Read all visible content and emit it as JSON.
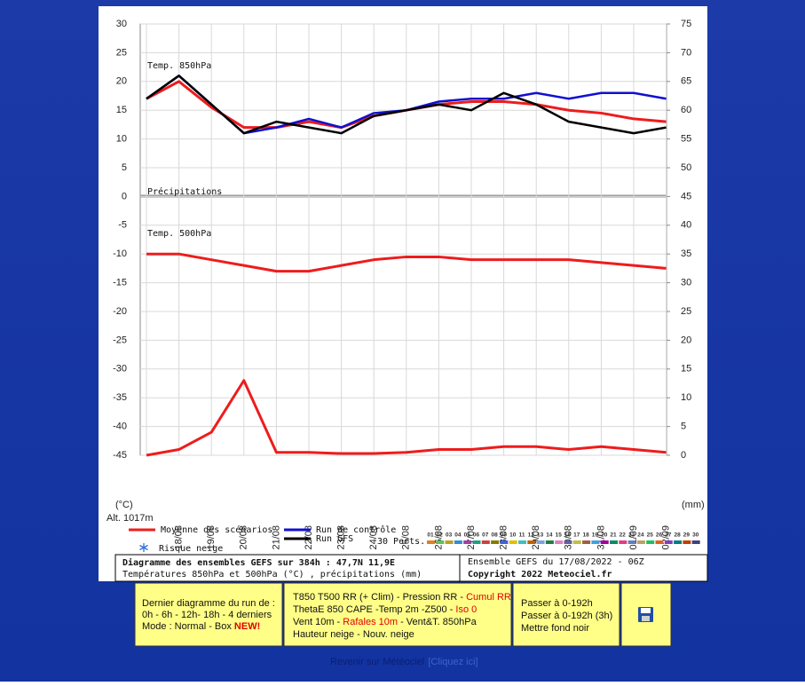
{
  "chart_data": {
    "type": "line",
    "panel_labels": [
      "Temp. 850hPa",
      "Précipitations",
      "Temp. 500hPa"
    ],
    "y_unit": "(°C)",
    "y2_unit": "(mm)",
    "altitude": "Alt. 1017m",
    "categories": [
      null,
      "18/08",
      "19/08",
      "20/08",
      "21/08",
      "22/08",
      "23/08",
      "24/08",
      "25/08",
      "26/08",
      "27/08",
      "28/08",
      "29/08",
      "30/08",
      "31/08",
      "01/09",
      "02/09"
    ],
    "ylim": [
      -45,
      30
    ],
    "yticks": [
      30,
      25,
      20,
      15,
      10,
      5,
      0,
      -5,
      -10,
      -15,
      -20,
      -25,
      -30,
      -35,
      -40,
      -45
    ],
    "y2lim": [
      0,
      75
    ],
    "y2ticks": [
      75,
      70,
      65,
      60,
      55,
      50,
      45,
      40,
      35,
      30,
      25,
      20,
      15,
      10,
      5,
      0
    ],
    "grid": true,
    "series": [
      {
        "name": "Moyenne des scénarios",
        "color": "#ee1c1c",
        "values": [
          17,
          20,
          15.5,
          12,
          12,
          13,
          12,
          14,
          15,
          16,
          16.5,
          16.5,
          16,
          15,
          14.5,
          13.5,
          13
        ]
      },
      {
        "color": "#ee1c1c",
        "values": [
          -10,
          -10,
          -11,
          -12,
          -13,
          -13,
          -12,
          -11,
          -10.5,
          -10.5,
          -11,
          -11,
          -11,
          -11,
          -11.5,
          -12,
          -12.5
        ]
      },
      {
        "color": "#ee1c1c",
        "axis": "y2",
        "values": [
          0,
          1,
          4,
          13,
          0.5,
          0.5,
          0.3,
          0.3,
          0.5,
          1,
          1,
          1.5,
          1.5,
          1,
          1.5,
          1,
          0.5
        ]
      },
      {
        "name": "Run de contrôle",
        "color": "#1010d0",
        "values": [
          17,
          21,
          16,
          11,
          12,
          13.5,
          12,
          14.5,
          15,
          16.5,
          17,
          17,
          18,
          17,
          18,
          18,
          17
        ]
      },
      {
        "name": "Run GFS",
        "color": "#000000",
        "values": [
          17,
          21,
          16,
          11,
          13,
          12,
          11,
          14,
          15,
          16,
          15,
          18,
          16,
          13,
          12,
          11,
          12
        ]
      }
    ],
    "snow_legend": "Risque neige",
    "perturbations": {
      "label": "30 Perts.",
      "ids": [
        "01",
        "02",
        "03",
        "04",
        "05",
        "06",
        "07",
        "08",
        "09",
        "10",
        "11",
        "12",
        "13",
        "14",
        "15",
        "16",
        "17",
        "18",
        "19",
        "20",
        "21",
        "22",
        "23",
        "24",
        "25",
        "26",
        "27",
        "28",
        "29",
        "30"
      ],
      "colors": [
        "#e08020",
        "#60c060",
        "#c0a020",
        "#3090d0",
        "#a040a0",
        "#20a080",
        "#d04040",
        "#808000",
        "#4060e0",
        "#e0c000",
        "#40c0c0",
        "#c06000",
        "#80a0e0",
        "#208040",
        "#e080c0",
        "#6060a0",
        "#c0c040",
        "#a06040",
        "#40a0e0",
        "#a000a0",
        "#009060",
        "#e04080",
        "#6080c0",
        "#c0a060",
        "#20c060",
        "#e06020",
        "#8040c0",
        "#008080",
        "#c04000",
        "#404080"
      ]
    },
    "info": {
      "title": "Diagramme des ensembles GEFS sur 384h : 47,7N 11,9E",
      "subtitle": "Températures 850hPa et 500hPa (°C) , précipitations (mm)",
      "run": "Ensemble GEFS du 17/08/2022 - 06Z",
      "copyright": "Copyright 2022 Meteociel.fr"
    }
  },
  "page": {
    "boxes": [
      [
        [
          {
            "text": "Dernier diagramme du run de :"
          }
        ],
        [
          {
            "text": "0h - 6h - 12h- 18h - 4 derniers"
          }
        ],
        [
          {
            "text": "Mode : Normal - Box "
          },
          {
            "text": "NEW!",
            "color": "#e00000"
          }
        ]
      ],
      [
        [
          {
            "text": "T850 T500 RR (+ Clim) - Pression RR - "
          },
          {
            "text": "Cumul RR",
            "color": "#e00000"
          }
        ],
        [
          {
            "text": "ThetaE 850 CAPE -Temp 2m -Z500 - "
          },
          {
            "text": "Iso 0",
            "color": "#e00000"
          }
        ],
        [
          {
            "text": "Vent 10m - "
          },
          {
            "text": "Rafales 10m",
            "color": "#e00000"
          },
          {
            "text": " - Vent&T. 850hPa"
          }
        ],
        [
          {
            "text": "Hauteur neige - Nouv. neige"
          }
        ]
      ],
      [
        [
          {
            "text": "Passer à 0-192h"
          }
        ],
        [
          {
            "text": "Passer à 0-192h (3h)"
          }
        ],
        [
          {
            "text": "Mettre fond noir"
          }
        ]
      ]
    ],
    "back_link": {
      "text": "Revenir sur Météociel",
      "hint": "[Cliquez ici]"
    }
  }
}
